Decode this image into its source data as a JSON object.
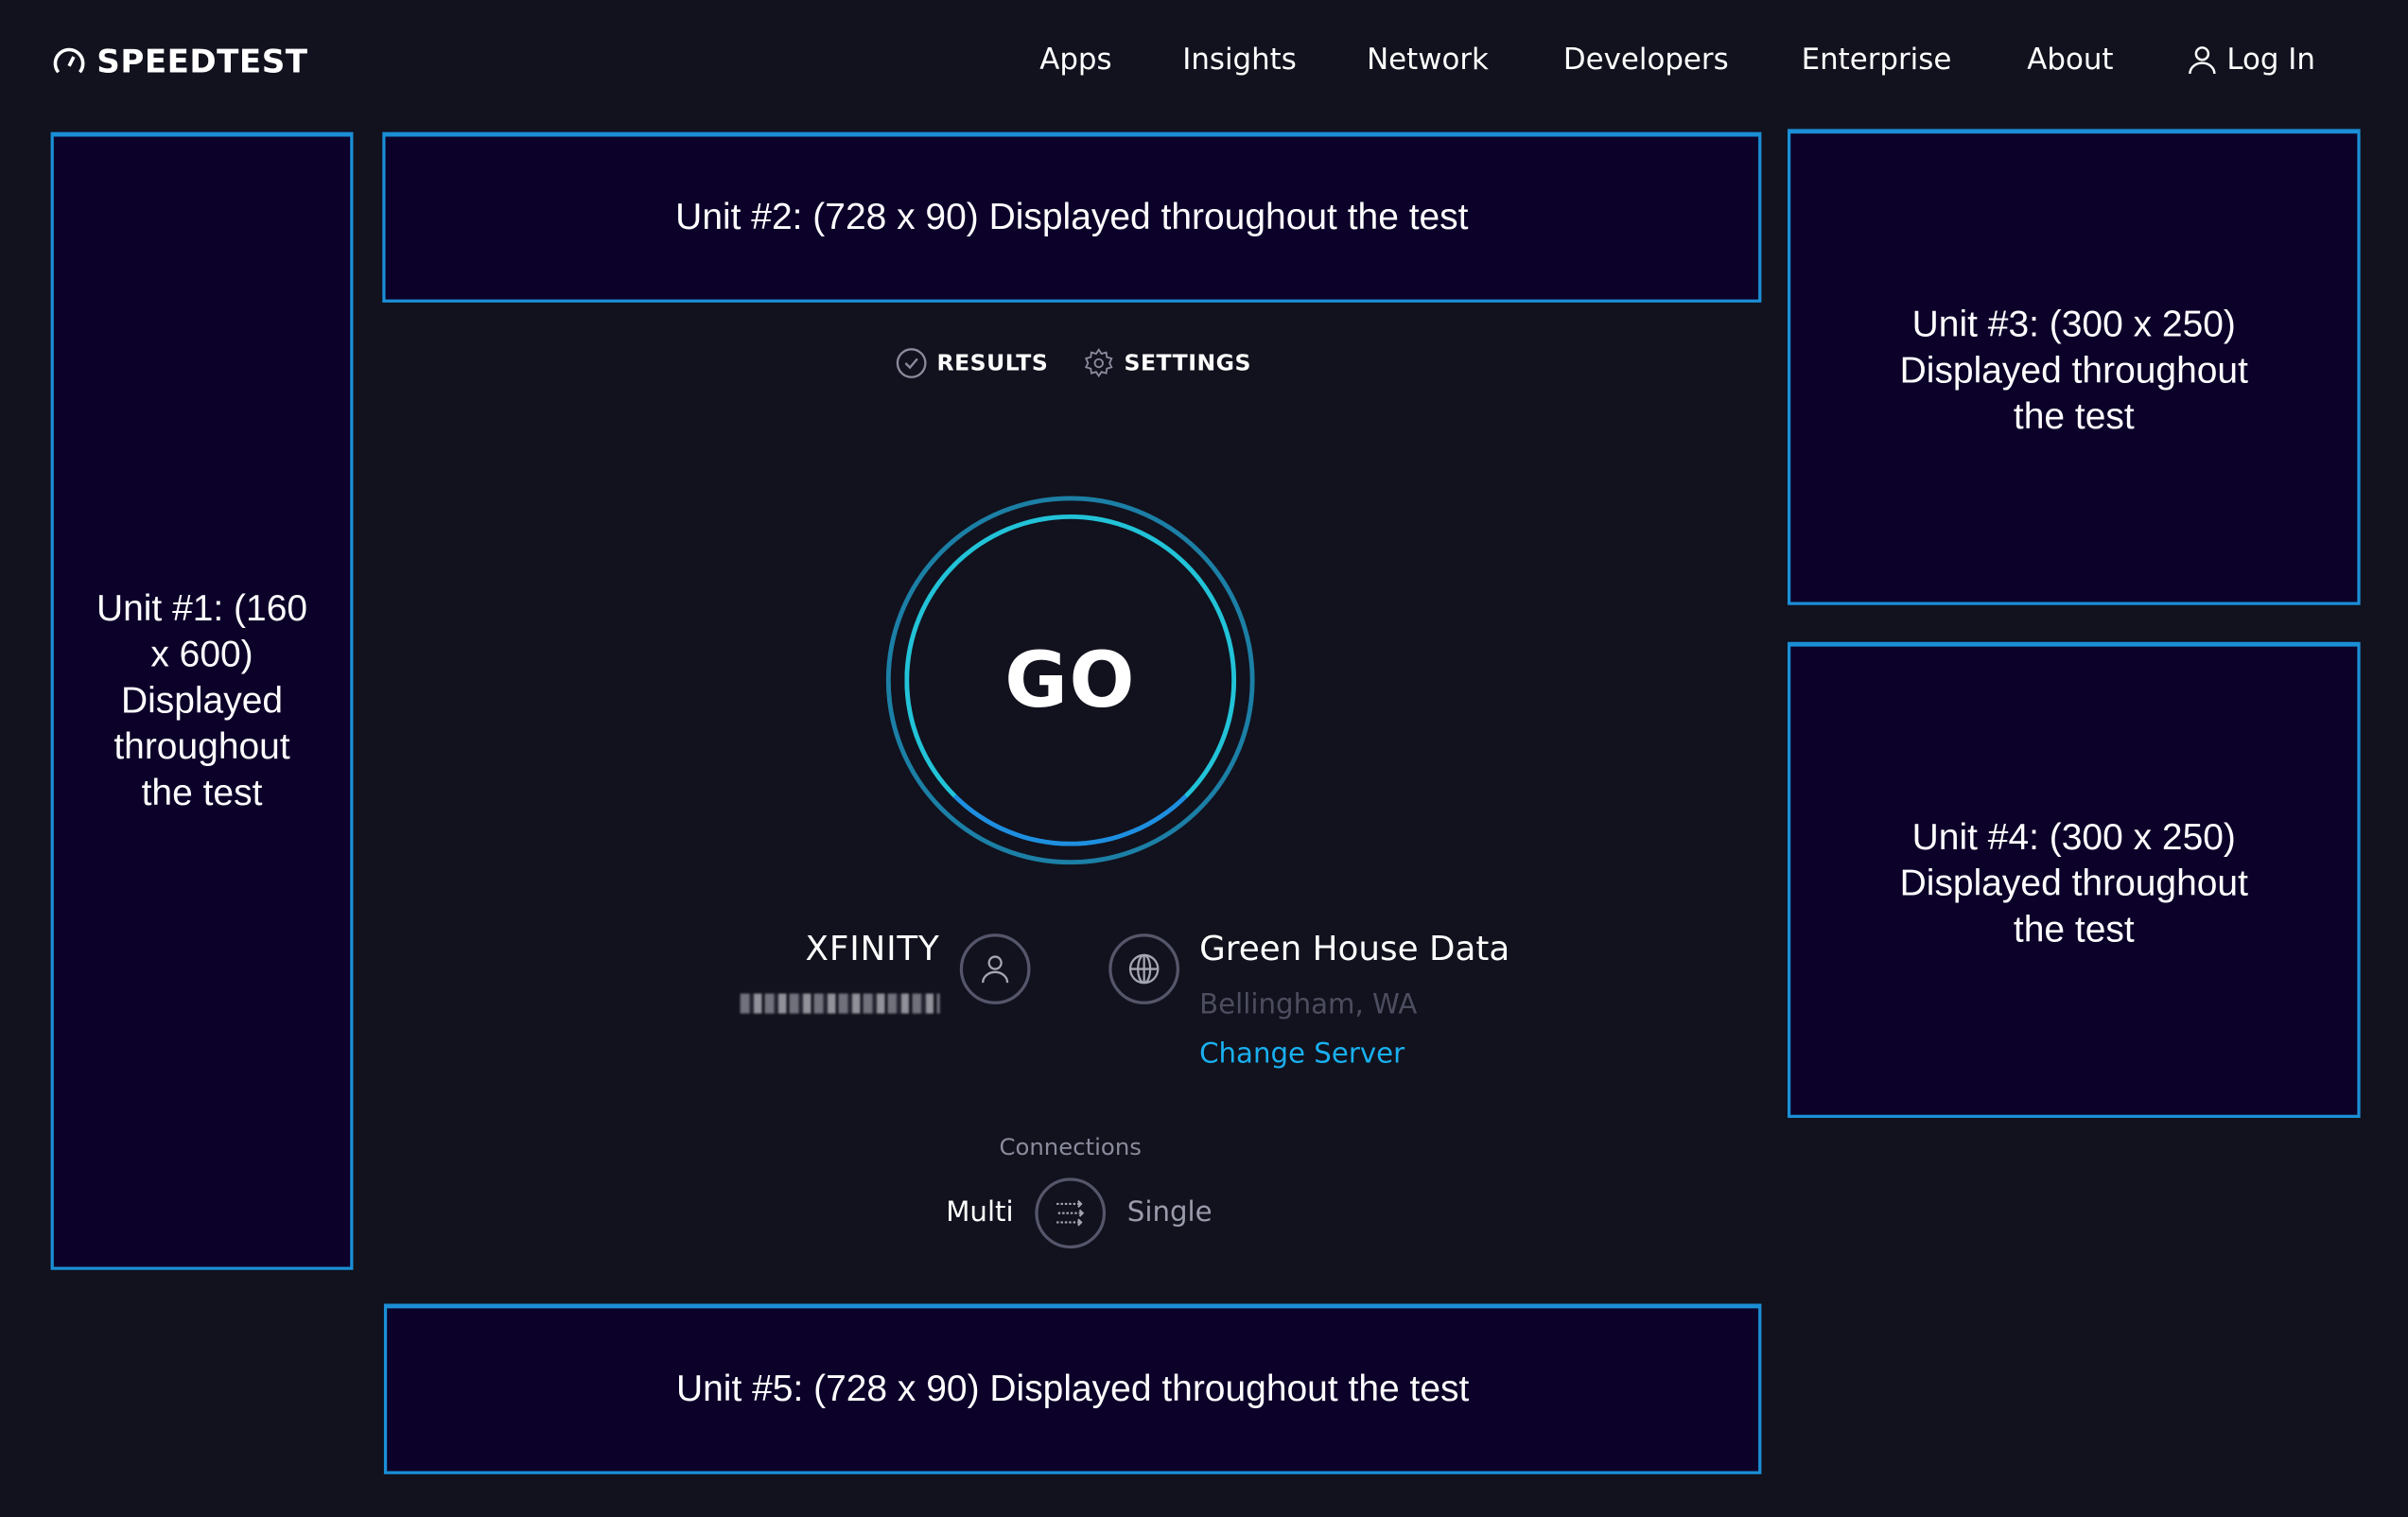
{
  "header": {
    "logo_text": "SPEEDTEST",
    "nav": [
      "Apps",
      "Insights",
      "Network",
      "Developers",
      "Enterprise",
      "About"
    ],
    "login_label": "Log In"
  },
  "ads": {
    "unit1": "Unit #1: (160 x 600) Displayed throughout the test",
    "unit2": "Unit #2: (728 x 90) Displayed throughout the test",
    "unit3": "Unit #3: (300 x 250) Displayed throughout the test",
    "unit4": "Unit #4: (300 x 250) Displayed throughout the test",
    "unit5": "Unit #5: (728 x 90) Displayed throughout the test"
  },
  "tabs": {
    "results": "RESULTS",
    "settings": "SETTINGS"
  },
  "go_label": "GO",
  "isp": {
    "name": "XFINITY"
  },
  "server": {
    "name": "Green House Data",
    "location": "Bellingham, WA",
    "change_label": "Change Server"
  },
  "connections": {
    "label": "Connections",
    "multi": "Multi",
    "single": "Single",
    "selected": "Multi"
  },
  "colors": {
    "background": "#11121d",
    "accent": "#1ab0f0",
    "ad_border": "#1b8fd6",
    "ad_fill": "#0c0129"
  }
}
